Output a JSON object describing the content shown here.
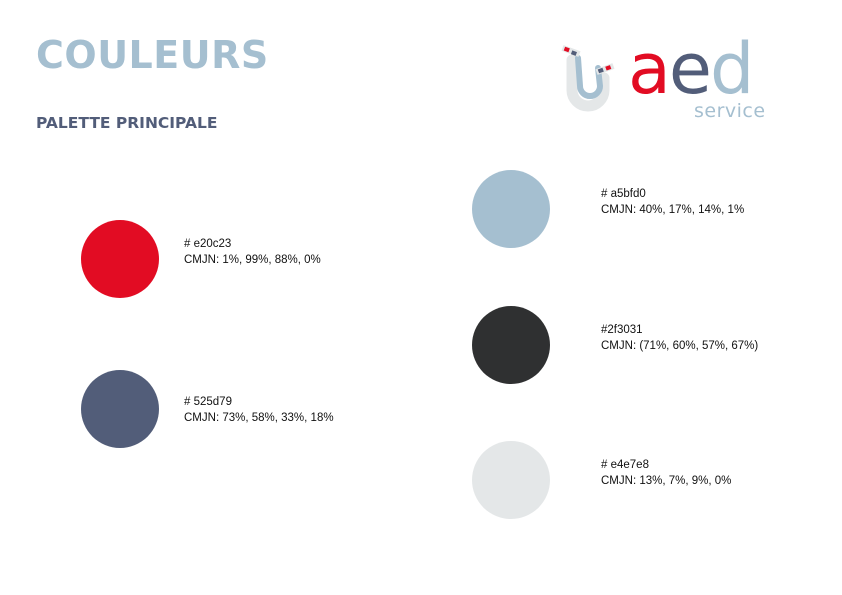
{
  "page": {
    "title": "COULEURS",
    "subtitle": "PALETTE PRINCIPALE"
  },
  "logo": {
    "letters": [
      "a",
      "e",
      "d"
    ],
    "letter_colors": [
      "#e20c23",
      "#525d79",
      "#a5bfd0"
    ],
    "tagline": "service",
    "icon": "pipe-icon"
  },
  "colors": {
    "accent_title": "#a5bfd0",
    "accent_subtitle": "#525d79"
  },
  "swatches": [
    {
      "hex": "#e20c23",
      "label": "# e20c23",
      "cmyk": "CMJN: 1%, 99%, 88%, 0%"
    },
    {
      "hex": "#525d79",
      "label": "# 525d79",
      "cmyk": "CMJN: 73%, 58%, 33%, 18%"
    },
    {
      "hex": "#a5bfd0",
      "label": "# a5bfd0",
      "cmyk": "CMJN: 40%, 17%, 14%, 1%"
    },
    {
      "hex": "#2f3031",
      "label": "#2f3031",
      "cmyk": "CMJN: (71%, 60%, 57%, 67%)"
    },
    {
      "hex": "#e4e7e8",
      "label": "# e4e7e8",
      "cmyk": "CMJN: 13%, 7%, 9%, 0%"
    }
  ]
}
